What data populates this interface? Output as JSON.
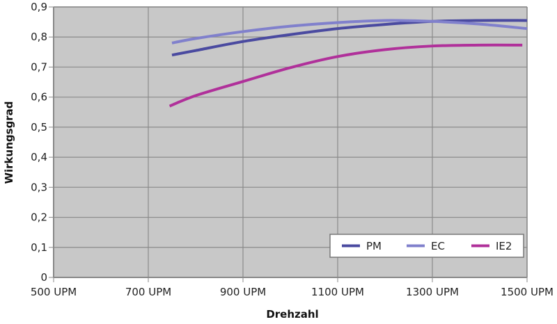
{
  "chart_data": {
    "type": "line",
    "title": "",
    "xlabel": "Drehzahl",
    "ylabel": "Wirkungsgrad",
    "xlim": [
      500,
      1500
    ],
    "ylim": [
      0,
      0.9
    ],
    "x_ticks": [
      500,
      700,
      900,
      1100,
      1300,
      1500
    ],
    "x_tick_labels": [
      "500 UPM",
      "700 UPM",
      "900 UPM",
      "1100 UPM",
      "1300 UPM",
      "1500 UPM"
    ],
    "y_ticks": [
      0,
      0.1,
      0.2,
      0.3,
      0.4,
      0.5,
      0.6,
      0.7,
      0.8,
      0.9
    ],
    "y_tick_labels": [
      "0",
      "0,1",
      "0,2",
      "0,3",
      "0,4",
      "0,5",
      "0,6",
      "0,7",
      "0,8",
      "0,9"
    ],
    "grid": true,
    "legend_position": "lower right (inside plot)",
    "plot_background": "#c8c8c8",
    "series": [
      {
        "name": "PM",
        "color": "#4a4aa0",
        "x": [
          750,
          800,
          900,
          1000,
          1100,
          1200,
          1300,
          1400,
          1500
        ],
        "y": [
          0.74,
          0.755,
          0.785,
          0.808,
          0.828,
          0.842,
          0.852,
          0.855,
          0.855
        ]
      },
      {
        "name": "EC",
        "color": "#8080cc",
        "x": [
          750,
          800,
          900,
          1000,
          1100,
          1200,
          1300,
          1400,
          1500
        ],
        "y": [
          0.78,
          0.795,
          0.818,
          0.836,
          0.848,
          0.855,
          0.852,
          0.843,
          0.828
        ]
      },
      {
        "name": "IE2",
        "color": "#b0309a",
        "x": [
          745,
          800,
          900,
          1000,
          1100,
          1200,
          1300,
          1400,
          1490
        ],
        "y": [
          0.57,
          0.605,
          0.652,
          0.698,
          0.735,
          0.758,
          0.77,
          0.773,
          0.773
        ]
      }
    ]
  }
}
